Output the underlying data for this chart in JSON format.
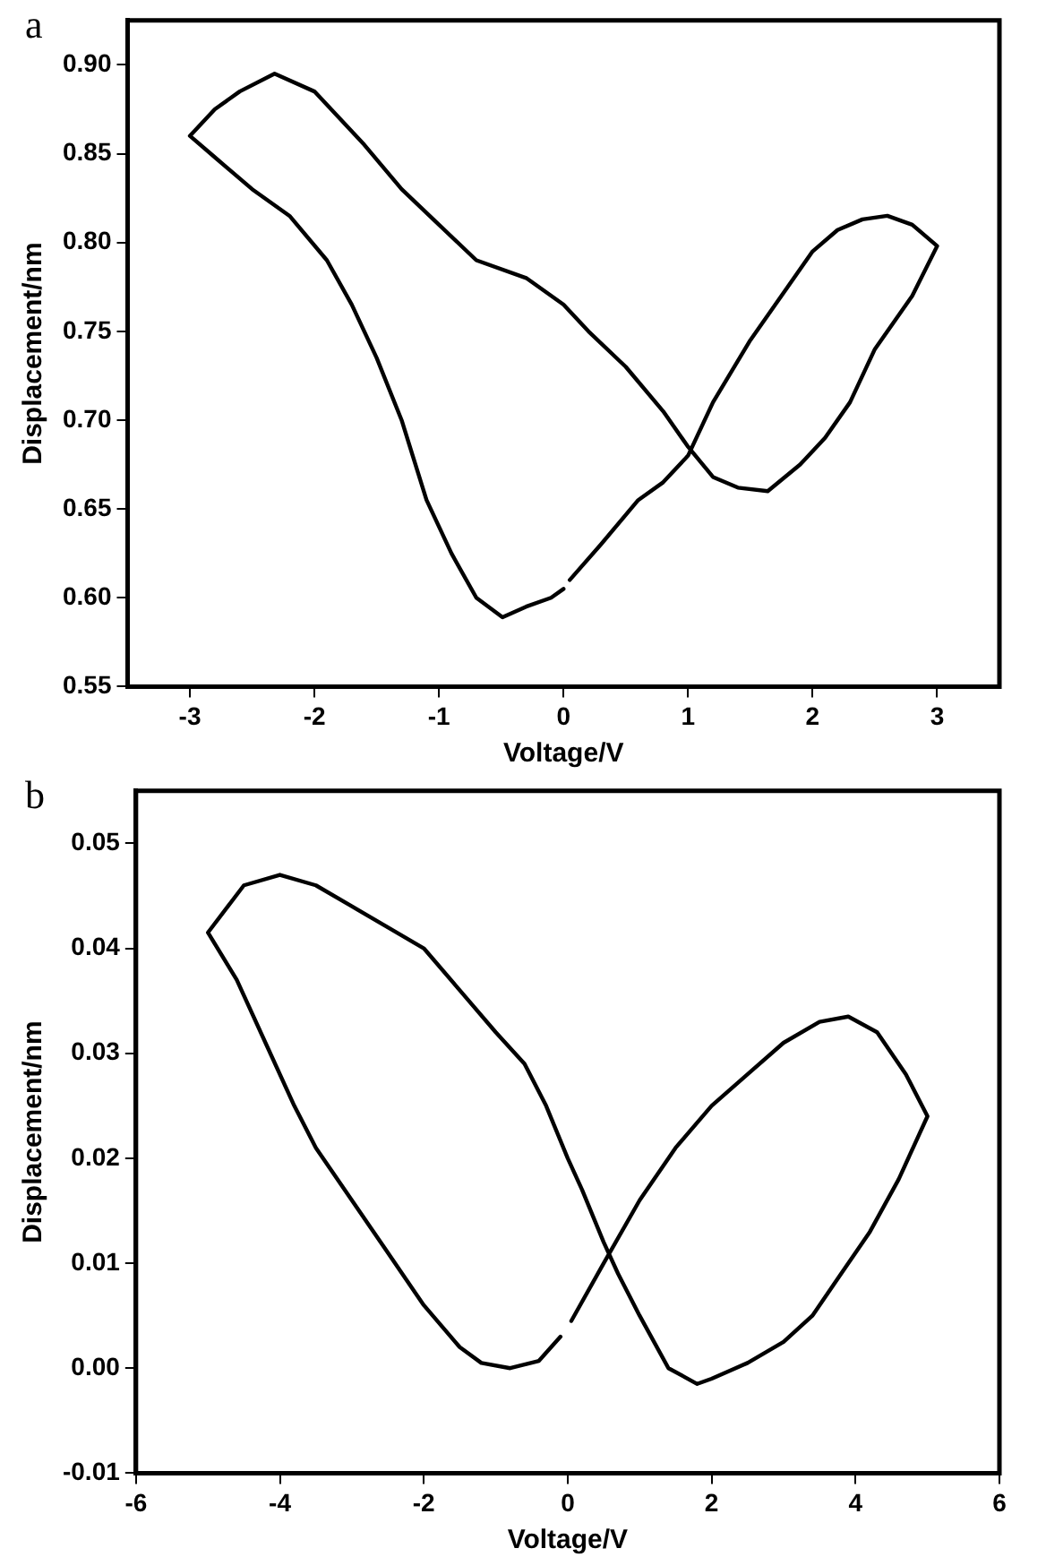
{
  "chart_data": [
    {
      "type": "line",
      "annotations": [
        "a"
      ],
      "xlabel": "Voltage/V",
      "ylabel": "Displacement/nm",
      "xlim": [
        -3.5,
        3.5
      ],
      "xticks": [
        -3,
        -2,
        -1,
        0,
        1,
        2,
        3
      ],
      "ylim": [
        0.55,
        0.925
      ],
      "yticks": [
        {
          "value": 0.55,
          "label": "0.55"
        },
        {
          "value": 0.6,
          "label": "0.60"
        },
        {
          "value": 0.65,
          "label": "0.65"
        },
        {
          "value": 0.7,
          "label": "0.70"
        },
        {
          "value": 0.75,
          "label": "0.75"
        },
        {
          "value": 0.8,
          "label": "0.80"
        },
        {
          "value": 0.85,
          "label": "0.85"
        },
        {
          "value": 0.9,
          "label": "0.90"
        }
      ],
      "grid": false,
      "legend": false,
      "marker": "none",
      "line_style": "solid",
      "series": [
        {
          "color": "#000000",
          "x": [
            0.05,
            0.3,
            0.6,
            0.8,
            1.0,
            1.2,
            1.5,
            1.8,
            2.0,
            2.2,
            2.4,
            2.6,
            2.8,
            3.0,
            2.8,
            2.5,
            2.3,
            2.1,
            1.9,
            1.64,
            1.4,
            1.2,
            1.0,
            0.8,
            0.5,
            0.2,
            0.0,
            -0.3,
            -0.7,
            -1.0,
            -1.3,
            -1.6,
            -1.8,
            -2.0,
            -2.32,
            -2.6,
            -2.8,
            -3.0,
            -2.8,
            -2.5,
            -2.2,
            -1.9,
            -1.7,
            -1.5,
            -1.3,
            -1.1,
            -0.9,
            -0.7,
            -0.49,
            -0.3,
            -0.1,
            0.0
          ],
          "values": [
            0.61,
            0.63,
            0.655,
            0.665,
            0.68,
            0.71,
            0.745,
            0.775,
            0.795,
            0.807,
            0.813,
            0.815,
            0.81,
            0.798,
            0.77,
            0.74,
            0.71,
            0.69,
            0.675,
            0.66,
            0.662,
            0.668,
            0.685,
            0.705,
            0.73,
            0.75,
            0.765,
            0.78,
            0.79,
            0.81,
            0.83,
            0.855,
            0.87,
            0.885,
            0.895,
            0.885,
            0.875,
            0.86,
            0.848,
            0.83,
            0.815,
            0.79,
            0.765,
            0.735,
            0.7,
            0.655,
            0.625,
            0.6,
            0.589,
            0.595,
            0.6,
            0.605
          ]
        }
      ]
    },
    {
      "type": "line",
      "annotations": [
        "b"
      ],
      "xlabel": "Voltage/V",
      "ylabel": "Displacement/nm",
      "xlim": [
        -6,
        6
      ],
      "xticks": [
        -6,
        -4,
        -2,
        0,
        2,
        4,
        6
      ],
      "ylim": [
        -0.01,
        0.055
      ],
      "yticks": [
        {
          "value": -0.01,
          "label": "-0.01"
        },
        {
          "value": 0,
          "label": "0.00"
        },
        {
          "value": 0.01,
          "label": "0.01"
        },
        {
          "value": 0.02,
          "label": "0.02"
        },
        {
          "value": 0.03,
          "label": "0.03"
        },
        {
          "value": 0.04,
          "label": "0.04"
        },
        {
          "value": 0.05,
          "label": "0.05"
        }
      ],
      "grid": false,
      "legend": false,
      "marker": "none",
      "line_style": "solid",
      "series": [
        {
          "color": "#000000",
          "x": [
            0.05,
            0.5,
            1.0,
            1.5,
            2.0,
            2.5,
            3.0,
            3.5,
            3.9,
            4.3,
            4.7,
            5.0,
            4.6,
            4.2,
            3.8,
            3.4,
            3.0,
            2.5,
            2.0,
            1.8,
            1.4,
            1.0,
            0.7,
            0.5,
            0.2,
            0.0,
            -0.3,
            -0.6,
            -1.0,
            -1.5,
            -2.0,
            -2.5,
            -3.0,
            -3.5,
            -4.0,
            -4.5,
            -5.0,
            -4.6,
            -4.2,
            -3.8,
            -3.5,
            -3.0,
            -2.5,
            -2.0,
            -1.5,
            -1.2,
            -0.8,
            -0.4,
            -0.1
          ],
          "values": [
            0.0045,
            0.01,
            0.016,
            0.021,
            0.025,
            0.028,
            0.031,
            0.033,
            0.0335,
            0.032,
            0.028,
            0.024,
            0.018,
            0.013,
            0.009,
            0.005,
            0.0025,
            0.0005,
            -0.001,
            -0.0015,
            0.0,
            0.005,
            0.009,
            0.012,
            0.017,
            0.02,
            0.025,
            0.029,
            0.032,
            0.036,
            0.04,
            0.042,
            0.044,
            0.046,
            0.047,
            0.046,
            0.0415,
            0.037,
            0.031,
            0.025,
            0.021,
            0.016,
            0.011,
            0.006,
            0.002,
            0.0005,
            0.0,
            0.0007,
            0.003
          ]
        }
      ]
    }
  ]
}
